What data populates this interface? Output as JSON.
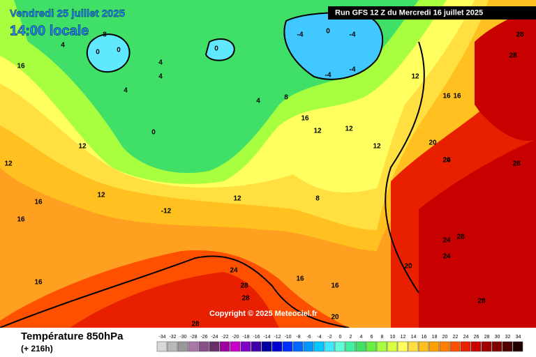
{
  "header": {
    "title": "Vendredi 25 juillet 2025",
    "time": "14:00 locale",
    "run": "Run GFS 12 Z du Mercredi 16 juillet 2025"
  },
  "copyright": "Copyright © 2025 Meteociel.fr",
  "legend": {
    "title": "Température 850hPa",
    "lead": "(+ 216h)",
    "values": [
      -34,
      -32,
      -30,
      -28,
      -26,
      -24,
      -22,
      -20,
      -18,
      -16,
      -14,
      -12,
      -10,
      -8,
      -6,
      -4,
      -2,
      0,
      2,
      4,
      6,
      8,
      10,
      12,
      14,
      16,
      18,
      20,
      22,
      24,
      26,
      28,
      30,
      32,
      34
    ],
    "colors": [
      "#d8d8d8",
      "#b8b8b8",
      "#989898",
      "#a878a8",
      "#885088",
      "#683068",
      "#a000a0",
      "#c800c8",
      "#8000c8",
      "#4000a8",
      "#0000a0",
      "#0000d0",
      "#0030ff",
      "#0068ff",
      "#0098ff",
      "#00c8ff",
      "#40e8ff",
      "#60ffd8",
      "#40f0a0",
      "#40e068",
      "#68f040",
      "#a8ff40",
      "#d8ff40",
      "#ffff60",
      "#ffe040",
      "#ffc020",
      "#ffa000",
      "#ff8000",
      "#ff5000",
      "#e82000",
      "#c80000",
      "#a00000",
      "#800000",
      "#500000",
      "#200000"
    ]
  },
  "map": {
    "labels": [
      "4",
      "8",
      "4",
      "0",
      "0",
      "4",
      "4",
      "0",
      "0",
      "-4",
      "-4",
      "-4",
      "0",
      "-4",
      "4",
      "8",
      "12",
      "12",
      "12",
      "12",
      "16",
      "16",
      "16",
      "16",
      "12",
      "12",
      "8",
      "16",
      "16",
      "20",
      "20",
      "24",
      "28",
      "28",
      "24",
      "28",
      "28",
      "24",
      "28",
      "20",
      "16",
      "16",
      "20",
      "28",
      "16",
      "12",
      "12",
      "-12",
      "24",
      "28",
      "28"
    ]
  }
}
